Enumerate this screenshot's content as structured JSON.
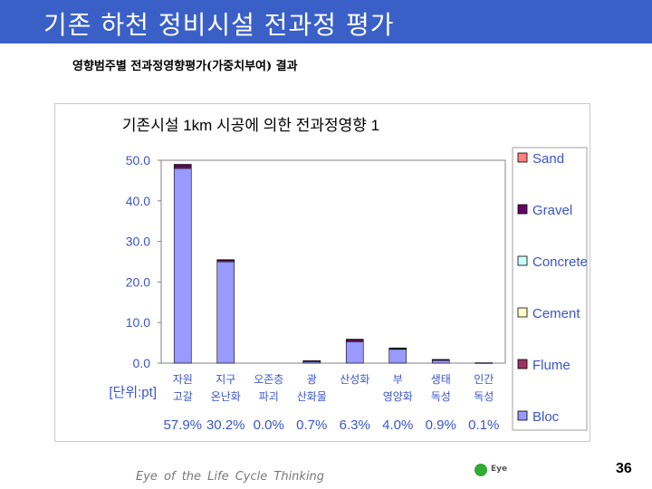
{
  "slide": {
    "title": "기존 하천 정비시설 전과정 평가",
    "subtitle": "영향범주별 전과정영향평가(가중치부여) 결과",
    "footer_tagline": "Eye of the Life Cycle Thinking",
    "logo_text": "Eye",
    "page_number": "36",
    "colors": {
      "title_bar": "#3a60c8",
      "accent_text": "#3b55c8"
    }
  },
  "chart_data": {
    "type": "bar",
    "stacked": true,
    "title": "기존시설 1km 시공에 의한 전과정영향 1",
    "unit_label": "[단위:pt]",
    "categories": [
      [
        "자원",
        "고갈"
      ],
      [
        "지구",
        "온난화"
      ],
      [
        "오존층",
        "파괴"
      ],
      [
        "광",
        "산화물"
      ],
      [
        "산성화",
        ""
      ],
      [
        "부",
        "영양화"
      ],
      [
        "생태",
        "독성"
      ],
      [
        "인간",
        "독성"
      ]
    ],
    "percent_labels": [
      "57.9%",
      "30.2%",
      "0.0%",
      "0.7%",
      "6.3%",
      "4.0%",
      "0.9%",
      "0.1%"
    ],
    "ylim": [
      0,
      50
    ],
    "y_ticks": [
      "0.0",
      "10.0",
      "20.0",
      "30.0",
      "40.0",
      "50.0"
    ],
    "grid": false,
    "legend_position": "right",
    "series": [
      {
        "name": "Bloc",
        "color": "#9999ff",
        "values": [
          48.0,
          25.0,
          0.0,
          0.5,
          5.3,
          3.4,
          0.8,
          0.1
        ]
      },
      {
        "name": "Flume",
        "color": "#993366",
        "values": [
          0.4,
          0.3,
          0.0,
          0.05,
          0.3,
          0.2,
          0.05,
          0.0
        ]
      },
      {
        "name": "Cement",
        "color": "#ffffcc",
        "values": [
          0.0,
          0.0,
          0.0,
          0.0,
          0.0,
          0.0,
          0.0,
          0.0
        ]
      },
      {
        "name": "Concrete",
        "color": "#ccffff",
        "values": [
          0.0,
          0.0,
          0.0,
          0.0,
          0.0,
          0.0,
          0.0,
          0.0
        ]
      },
      {
        "name": "Gravel",
        "color": "#660066",
        "values": [
          0.6,
          0.2,
          0.0,
          0.05,
          0.3,
          0.15,
          0.05,
          0.0
        ]
      },
      {
        "name": "Sand",
        "color": "#ff8080",
        "values": [
          0.0,
          0.0,
          0.0,
          0.0,
          0.0,
          0.0,
          0.0,
          0.0
        ]
      }
    ]
  }
}
